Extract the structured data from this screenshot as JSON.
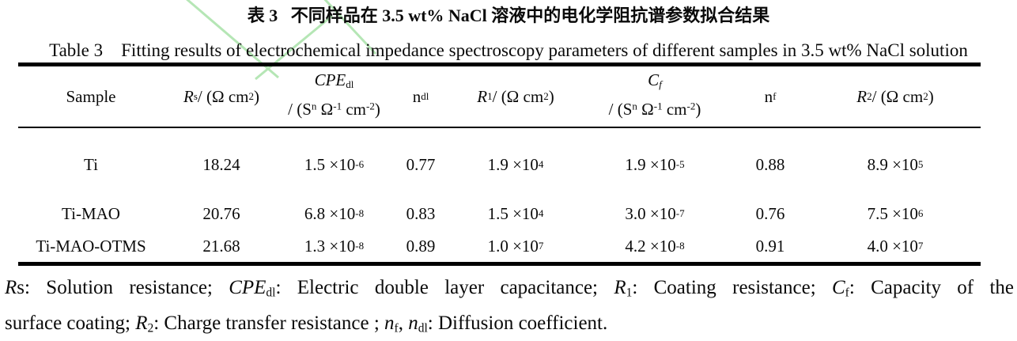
{
  "titles": {
    "zh": "表 3   不同样品在 3.5 wt% NaCl 溶液中的电化学阻抗谱参数拟合结果",
    "en": "Table 3    Fitting results of electrochemical impedance spectroscopy parameters of different samples in 3.5 wt% NaCl solution"
  },
  "colors": {
    "watermark_green": "#a9e2a9",
    "rule_black": "#000000"
  },
  "table": {
    "columns": {
      "sample": {
        "label_html": "Sample"
      },
      "rs": {
        "label_html": "<i>R</i><sub>s</sub> / (Ω cm<sup>2</sup>)"
      },
      "cpe": {
        "line1_html": "<i>CPE</i><sub>dl</sub>",
        "line2_html": "/ (S<sup>n</sup> Ω<sup>-1</sup> cm<sup>-2</sup>)"
      },
      "ndl": {
        "label_html": "n<sub>dl</sub>"
      },
      "r1": {
        "label_html": "<i>R</i><sub>1</sub> / (Ω cm<sup>2</sup>)"
      },
      "cf": {
        "line1_html": "<i>C<sub>f</sub></i>",
        "line2_html": "/ (S<sup>n</sup> Ω<sup>-1</sup> cm<sup>-2</sup>)"
      },
      "nf": {
        "label_html": "n<sub>f</sub>"
      },
      "r2": {
        "label_html": "<i>R</i><sub>2</sub> / (Ω cm<sup>2</sup>)"
      }
    },
    "rows": [
      {
        "cells_html": [
          "Ti",
          "18.24",
          "1.5 ×10<sup>-6</sup>",
          "0.77",
          "1.9 ×10<sup>4</sup>",
          "1.9 ×10<sup>-5</sup>",
          "0.88",
          "8.9 ×10<sup>5</sup>"
        ]
      },
      {
        "cells_html": [
          "Ti-MAO",
          "20.76",
          "6.8 ×10<sup>-8</sup>",
          "0.83",
          "1.5 ×10<sup>4</sup>",
          "3.0 ×10<sup>-7</sup>",
          "0.76",
          "7.5 ×10<sup>6</sup>"
        ]
      },
      {
        "cells_html": [
          "Ti-MAO-OTMS",
          "21.68",
          "1.3 ×10<sup>-8</sup>",
          "0.89",
          "1.0 ×10<sup>7</sup>",
          "4.2 ×10<sup>-8</sup>",
          "0.91",
          "4.0 ×10<sup>7</sup>"
        ]
      }
    ]
  },
  "footnote": {
    "line1_html": "<i>R</i>s: Solution resistance; <i>CPE</i><sub>dl</sub>: Electric double layer capacitance; <i>R</i><sub>1</sub>: Coating resistance; <i>C</i><sub>f</sub>: Capacity of the",
    "line2_html": "surface coating; <i>R</i><sub>2</sub>: Charge transfer resistance ; <i>n</i><sub>f</sub>, <i>n</i><sub>dl</sub>: Diffusion coefficient."
  }
}
